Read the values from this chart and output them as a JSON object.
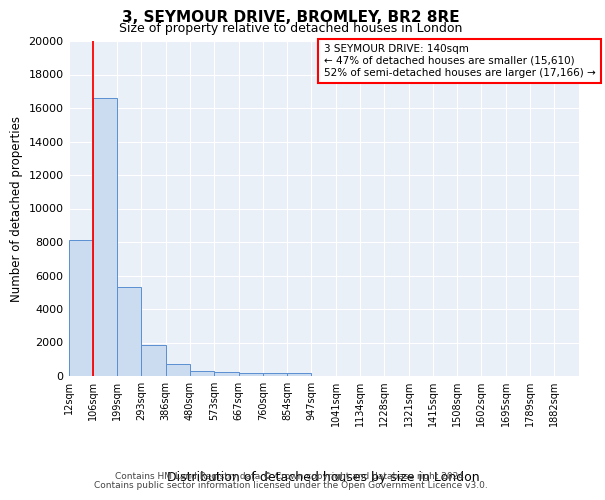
{
  "title1": "3, SEYMOUR DRIVE, BROMLEY, BR2 8RE",
  "title2": "Size of property relative to detached houses in London",
  "xlabel": "Distribution of detached houses by size in London",
  "ylabel": "Number of detached properties",
  "bin_labels": [
    "12sqm",
    "106sqm",
    "199sqm",
    "293sqm",
    "386sqm",
    "480sqm",
    "573sqm",
    "667sqm",
    "760sqm",
    "854sqm",
    "947sqm",
    "1041sqm",
    "1134sqm",
    "1228sqm",
    "1321sqm",
    "1415sqm",
    "1508sqm",
    "1602sqm",
    "1695sqm",
    "1789sqm",
    "1882sqm"
  ],
  "bar_heights": [
    8100,
    16600,
    5300,
    1850,
    700,
    300,
    225,
    200,
    175,
    150,
    0,
    0,
    0,
    0,
    0,
    0,
    0,
    0,
    0,
    0,
    0
  ],
  "bar_color": "#ccdcf0",
  "bar_edge_color": "#5a8fd0",
  "red_line_x": 1.0,
  "annotation_text": "3 SEYMOUR DRIVE: 140sqm\n← 47% of detached houses are smaller (15,610)\n52% of semi-detached houses are larger (17,166) →",
  "annotation_box_color": "white",
  "annotation_box_edge": "red",
  "footer1": "Contains HM Land Registry data © Crown copyright and database right 2024.",
  "footer2": "Contains public sector information licensed under the Open Government Licence v3.0.",
  "plot_bg_color": "#eaf0f8",
  "ylim": [
    0,
    20000
  ],
  "yticks": [
    0,
    2000,
    4000,
    6000,
    8000,
    10000,
    12000,
    14000,
    16000,
    18000,
    20000
  ]
}
